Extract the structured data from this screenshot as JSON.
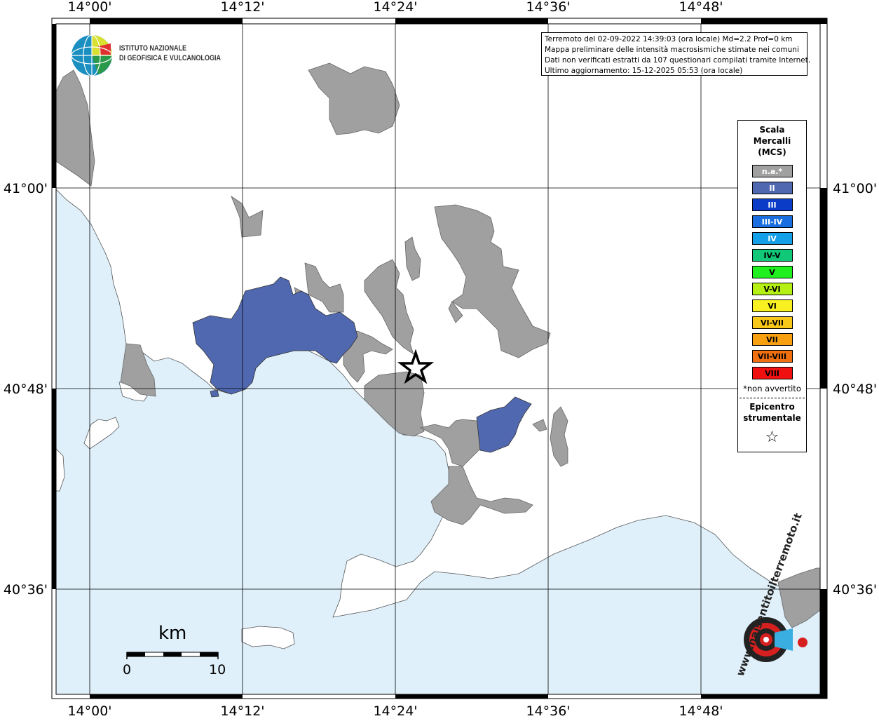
{
  "logo": {
    "institute_line1": "ISTITUTO NAZIONALE",
    "institute_line2": "DI GEOFISICA E VULCANOLOGIA"
  },
  "info": {
    "line1": "Terremoto del 02-09-2022 14:39:03 (ora locale) Md=2.2 Prof=0 km",
    "line2": "Mappa preliminare delle intensità macrosismiche stimate nei comuni",
    "line3": "Dati non verificati estratti da 107 questionari compilati tramite Internet.",
    "line4": "Ultimo aggiornamento: 15-12-2025 05:53 (ora locale)"
  },
  "axes": {
    "lon_top": [
      "14°00'",
      "14°12'",
      "14°24'",
      "14°36'",
      "14°48'"
    ],
    "lon_bottom": [
      "14°00'",
      "14°12'",
      "14°24'",
      "14°36'",
      "14°48'"
    ],
    "lat_left": [
      "41°00'",
      "40°48'",
      "40°36'"
    ],
    "lat_right": [
      "41°00'",
      "40°48'",
      "40°36'"
    ]
  },
  "legend": {
    "title_line1": "Scala",
    "title_line2": "Mercalli",
    "title_line3": "(MCS)",
    "items": [
      {
        "label": "n.a.*",
        "color": "#a0a0a0",
        "text_color": "#ffffff"
      },
      {
        "label": "II",
        "color": "#5068b0",
        "text_color": "#ffffff"
      },
      {
        "label": "III",
        "color": "#0a3cc8",
        "text_color": "#ffffff"
      },
      {
        "label": "III-IV",
        "color": "#1a6ee0",
        "text_color": "#ffffff"
      },
      {
        "label": "IV",
        "color": "#14a0e8",
        "text_color": "#ffffff"
      },
      {
        "label": "IV-V",
        "color": "#10c878",
        "text_color": "#000000"
      },
      {
        "label": "V",
        "color": "#20f020",
        "text_color": "#000000"
      },
      {
        "label": "V-VI",
        "color": "#b4f014",
        "text_color": "#000000"
      },
      {
        "label": "VI",
        "color": "#f8f020",
        "text_color": "#000000"
      },
      {
        "label": "VI-VII",
        "color": "#f8c818",
        "text_color": "#000000"
      },
      {
        "label": "VII",
        "color": "#f8a010",
        "text_color": "#000000"
      },
      {
        "label": "VII-VIII",
        "color": "#f07010",
        "text_color": "#000000"
      },
      {
        "label": "VIII",
        "color": "#f01010",
        "text_color": "#000000"
      }
    ],
    "note": "*non avvertito",
    "epicenter_line1": "Epicentro",
    "epicenter_line2": "strumentale",
    "epicenter_symbol": "☆"
  },
  "scalebar": {
    "unit": "km",
    "start": "0",
    "end": "10"
  },
  "colors": {
    "sea": "#dff0fb",
    "land": "#ffffff",
    "not_available": "#a0a0a0",
    "intensity_II": "#5068b0"
  },
  "watermark": {
    "text": "www.haisentitoilterremoto.it"
  }
}
